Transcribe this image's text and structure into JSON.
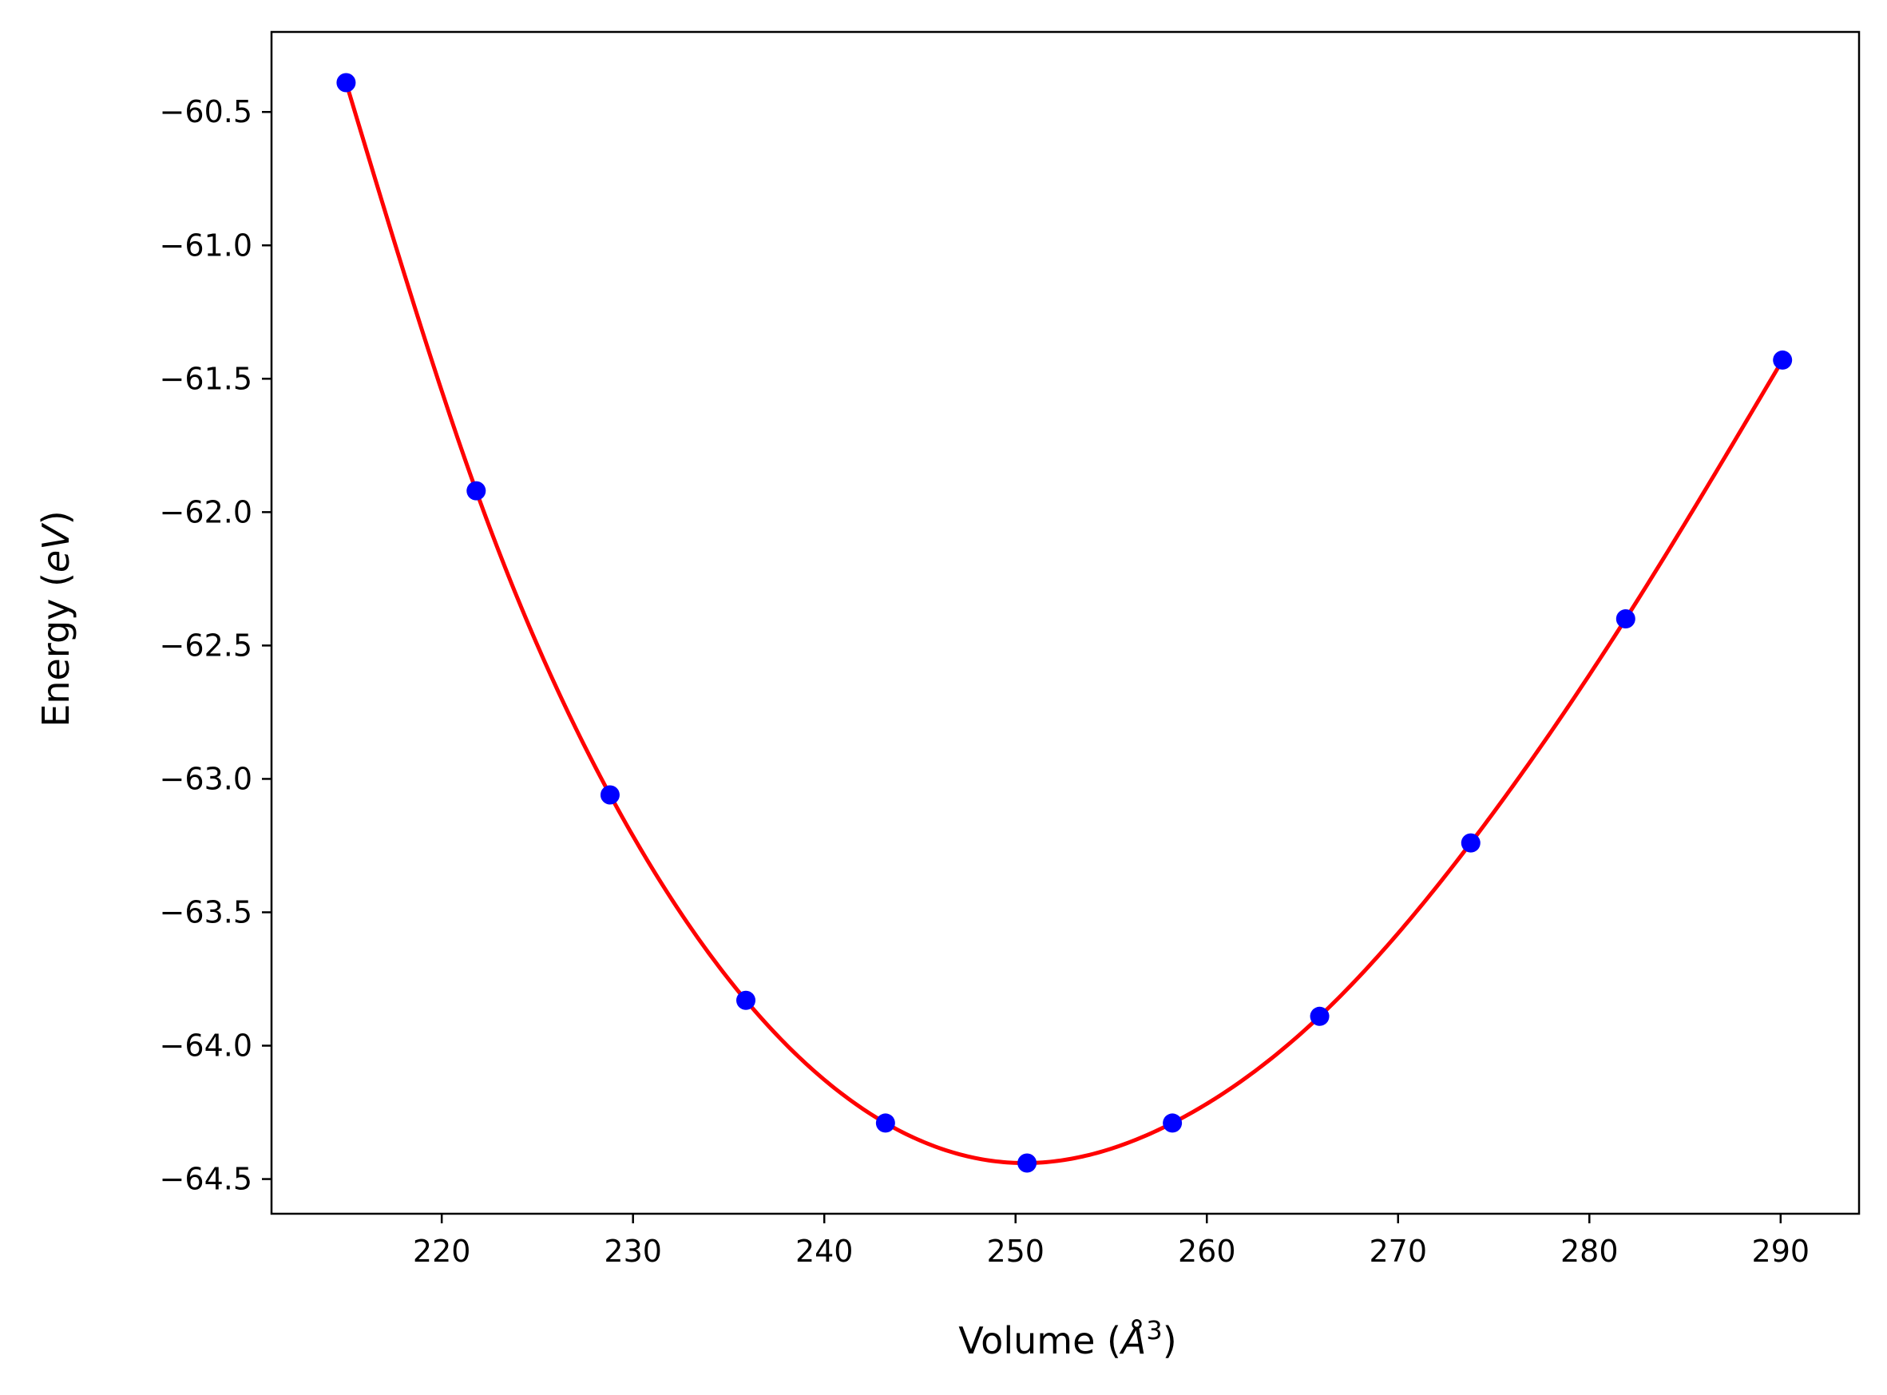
{
  "chart_data": {
    "type": "scatter",
    "title": "",
    "xlabel_text": "Volume (",
    "xlabel_symbol": "Å",
    "xlabel_sup": "3",
    "xlabel_close": ")",
    "ylabel_text": "Energy (",
    "ylabel_symbol": "eV",
    "ylabel_close": ")",
    "xlim": [
      211.1,
      294.1
    ],
    "ylim": [
      -64.63,
      -60.2
    ],
    "xticks": [
      220,
      230,
      240,
      250,
      260,
      270,
      280,
      290
    ],
    "xtick_labels": [
      "220",
      "230",
      "240",
      "250",
      "260",
      "270",
      "280",
      "290"
    ],
    "yticks": [
      -60.5,
      -61.0,
      -61.5,
      -62.0,
      -62.5,
      -63.0,
      -63.5,
      -64.0,
      -64.5
    ],
    "ytick_labels": [
      "−60.5",
      "−61.0",
      "−61.5",
      "−62.0",
      "−62.5",
      "−63.0",
      "−63.5",
      "−64.0",
      "−64.5"
    ],
    "grid": false,
    "series": [
      {
        "kind": "points",
        "color": "#0000ff",
        "x": [
          215.0,
          221.8,
          228.8,
          235.9,
          243.2,
          250.6,
          258.2,
          265.9,
          273.8,
          281.9,
          290.1
        ],
        "y": [
          -60.39,
          -61.92,
          -63.06,
          -63.83,
          -64.29,
          -64.44,
          -64.29,
          -63.89,
          -63.24,
          -62.4,
          -61.43
        ]
      },
      {
        "kind": "fit-curve",
        "color": "#ff0000",
        "x": [
          215.0,
          221.8,
          228.8,
          235.9,
          243.2,
          250.6,
          258.2,
          265.9,
          273.8,
          281.9,
          290.1
        ],
        "y": [
          -60.39,
          -61.92,
          -63.06,
          -63.83,
          -64.29,
          -64.44,
          -64.29,
          -63.89,
          -63.24,
          -62.4,
          -61.43
        ]
      }
    ]
  }
}
